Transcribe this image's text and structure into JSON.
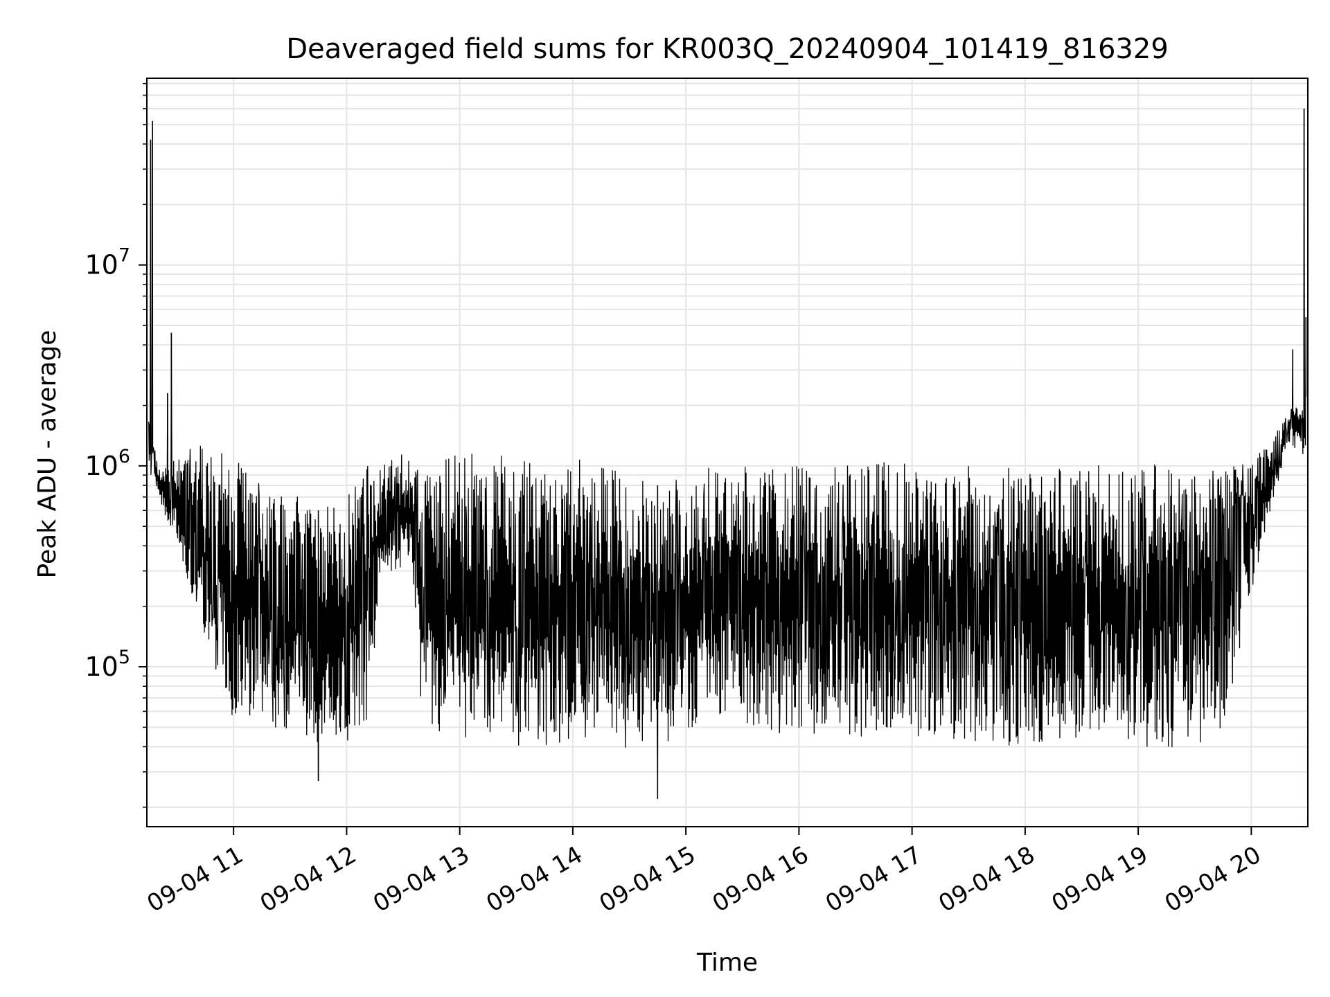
{
  "chart_data": {
    "type": "line",
    "title": "Deaveraged field sums for KR003Q_20240904_101419_816329",
    "xlabel": "Time",
    "ylabel": "Peak ADU - average",
    "y_scale": "log",
    "grid": "on (major and minor)",
    "legend": "none",
    "line_color": "#000000",
    "grid_color": "#e5e5e5",
    "xlim": [
      "2024-09-04 10:14",
      "2024-09-04 20:30"
    ],
    "ylim": [
      16000,
      85000000
    ],
    "x_ticks": [
      {
        "value": "2024-09-04 11:00",
        "label": "09-04 11"
      },
      {
        "value": "2024-09-04 12:00",
        "label": "09-04 12"
      },
      {
        "value": "2024-09-04 13:00",
        "label": "09-04 13"
      },
      {
        "value": "2024-09-04 14:00",
        "label": "09-04 14"
      },
      {
        "value": "2024-09-04 15:00",
        "label": "09-04 15"
      },
      {
        "value": "2024-09-04 16:00",
        "label": "09-04 16"
      },
      {
        "value": "2024-09-04 17:00",
        "label": "09-04 17"
      },
      {
        "value": "2024-09-04 18:00",
        "label": "09-04 18"
      },
      {
        "value": "2024-09-04 19:00",
        "label": "09-04 19"
      },
      {
        "value": "2024-09-04 20:00",
        "label": "09-04 20"
      }
    ],
    "y_ticks": [
      {
        "value": 100000,
        "base": "10",
        "exp": "5"
      },
      {
        "value": 1000000,
        "base": "10",
        "exp": "6"
      },
      {
        "value": 10000000,
        "base": "10",
        "exp": "7"
      }
    ],
    "series": [
      {
        "envelope": {
          "x": [
            "2024-09-04 10:15",
            "2024-09-04 10:20",
            "2024-09-04 10:30",
            "2024-09-04 10:40",
            "2024-09-04 10:50",
            "2024-09-04 11:00",
            "2024-09-04 11:15",
            "2024-09-04 11:30",
            "2024-09-04 11:45",
            "2024-09-04 12:00",
            "2024-09-04 12:10",
            "2024-09-04 12:20",
            "2024-09-04 12:35",
            "2024-09-04 12:40",
            "2024-09-04 12:50",
            "2024-09-04 13:00",
            "2024-09-04 13:30",
            "2024-09-04 14:00",
            "2024-09-04 14:15",
            "2024-09-04 14:30",
            "2024-09-04 14:45",
            "2024-09-04 15:00",
            "2024-09-04 15:10",
            "2024-09-04 15:30",
            "2024-09-04 16:00",
            "2024-09-04 16:30",
            "2024-09-04 17:00",
            "2024-09-04 17:30",
            "2024-09-04 18:00",
            "2024-09-04 18:30",
            "2024-09-04 19:00",
            "2024-09-04 19:30",
            "2024-09-04 19:45",
            "2024-09-04 20:00",
            "2024-09-04 20:10",
            "2024-09-04 20:20",
            "2024-09-04 20:29"
          ],
          "upper": [
            1900000,
            1000000,
            1100000,
            1300000,
            1200000,
            1100000,
            1000000,
            800000,
            600000,
            700000,
            1000000,
            1200000,
            1100000,
            900000,
            1100000,
            1150000,
            1150000,
            1100000,
            1000000,
            900000,
            800000,
            900000,
            1000000,
            1000000,
            1000000,
            1050000,
            1050000,
            1000000,
            1000000,
            1000000,
            1050000,
            1000000,
            1000000,
            1100000,
            1300000,
            1900000,
            2200000
          ],
          "lower": [
            900000,
            700000,
            400000,
            200000,
            100000,
            50000,
            55000,
            45000,
            42000,
            42000,
            50000,
            300000,
            300000,
            50000,
            45000,
            42000,
            40000,
            40000,
            45000,
            38000,
            40000,
            45000,
            55000,
            50000,
            45000,
            45000,
            45000,
            42000,
            40000,
            42000,
            40000,
            38000,
            50000,
            200000,
            600000,
            1300000,
            1100000
          ]
        },
        "spikes": [
          {
            "x": "2024-09-04 10:17",
            "y": 52000000
          },
          {
            "x": "2024-09-04 10:16",
            "y": 42000000
          },
          {
            "x": "2024-09-04 10:27",
            "y": 4600000
          },
          {
            "x": "2024-09-04 10:25",
            "y": 2300000
          },
          {
            "x": "2024-09-04 20:28",
            "y": 60000000
          },
          {
            "x": "2024-09-04 20:29",
            "y": 5500000
          },
          {
            "x": "2024-09-04 20:22",
            "y": 3800000
          },
          {
            "x": "2024-09-04 14:45",
            "y": 22000
          },
          {
            "x": "2024-09-04 11:45",
            "y": 27000
          }
        ]
      }
    ]
  }
}
